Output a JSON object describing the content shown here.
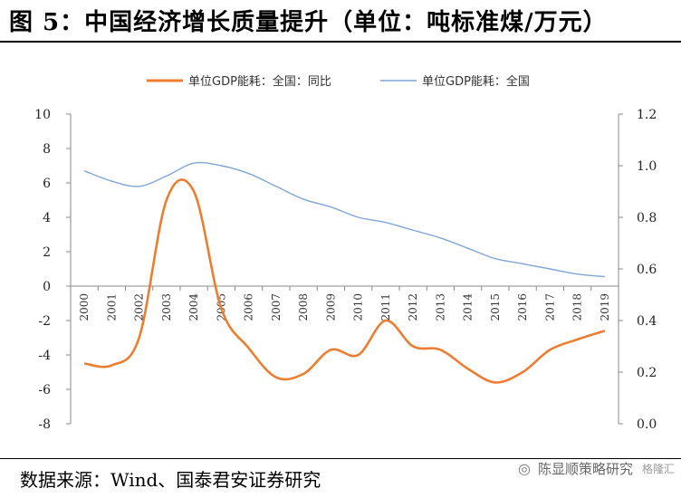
{
  "title": "图 5：中国经济增长质量提升（单位：吨标准煤/万元）",
  "source": "数据来源：Wind、国泰君安证券研究",
  "watermark": {
    "logo": "◎",
    "text": "陈显顺策略研究",
    "extra": "格隆汇"
  },
  "colors": {
    "yoy": "#ED7D31",
    "total": "#7FA6D8",
    "axis": "#888888"
  },
  "chart_data": {
    "type": "line",
    "title": "",
    "x": [
      "2000",
      "2001",
      "2002",
      "2003",
      "2004",
      "2005",
      "2006",
      "2007",
      "2008",
      "2009",
      "2010",
      "2011",
      "2012",
      "2013",
      "2014",
      "2015",
      "2016",
      "2017",
      "2018",
      "2019"
    ],
    "y_left": {
      "label": "",
      "lim": [
        -8,
        10
      ],
      "ticks": [
        "-8",
        "-6",
        "-4",
        "-2",
        "0",
        "2",
        "4",
        "6",
        "8",
        "10"
      ]
    },
    "y_right": {
      "label": "",
      "lim": [
        0.0,
        1.2
      ],
      "ticks": [
        "0.0",
        "0.2",
        "0.4",
        "0.6",
        "0.8",
        "1.0",
        "1.2"
      ]
    },
    "legend": {
      "placement": "top"
    },
    "series": [
      {
        "name": "单位GDP能耗：全国：同比",
        "axis": "left",
        "color": "#ED7D31",
        "values": [
          -4.5,
          -4.6,
          -3.0,
          5.0,
          5.5,
          -1.3,
          -3.6,
          -5.3,
          -5.1,
          -3.7,
          -4.0,
          -2.0,
          -3.5,
          -3.7,
          -4.8,
          -5.6,
          -5.0,
          -3.7,
          -3.1,
          -2.6
        ]
      },
      {
        "name": "单位GDP能耗：全国",
        "axis": "right",
        "color": "#7FA6D8",
        "values": [
          0.98,
          0.94,
          0.92,
          0.96,
          1.01,
          1.0,
          0.97,
          0.92,
          0.87,
          0.84,
          0.8,
          0.78,
          0.75,
          0.72,
          0.68,
          0.64,
          0.62,
          0.6,
          0.58,
          0.57
        ]
      }
    ]
  }
}
